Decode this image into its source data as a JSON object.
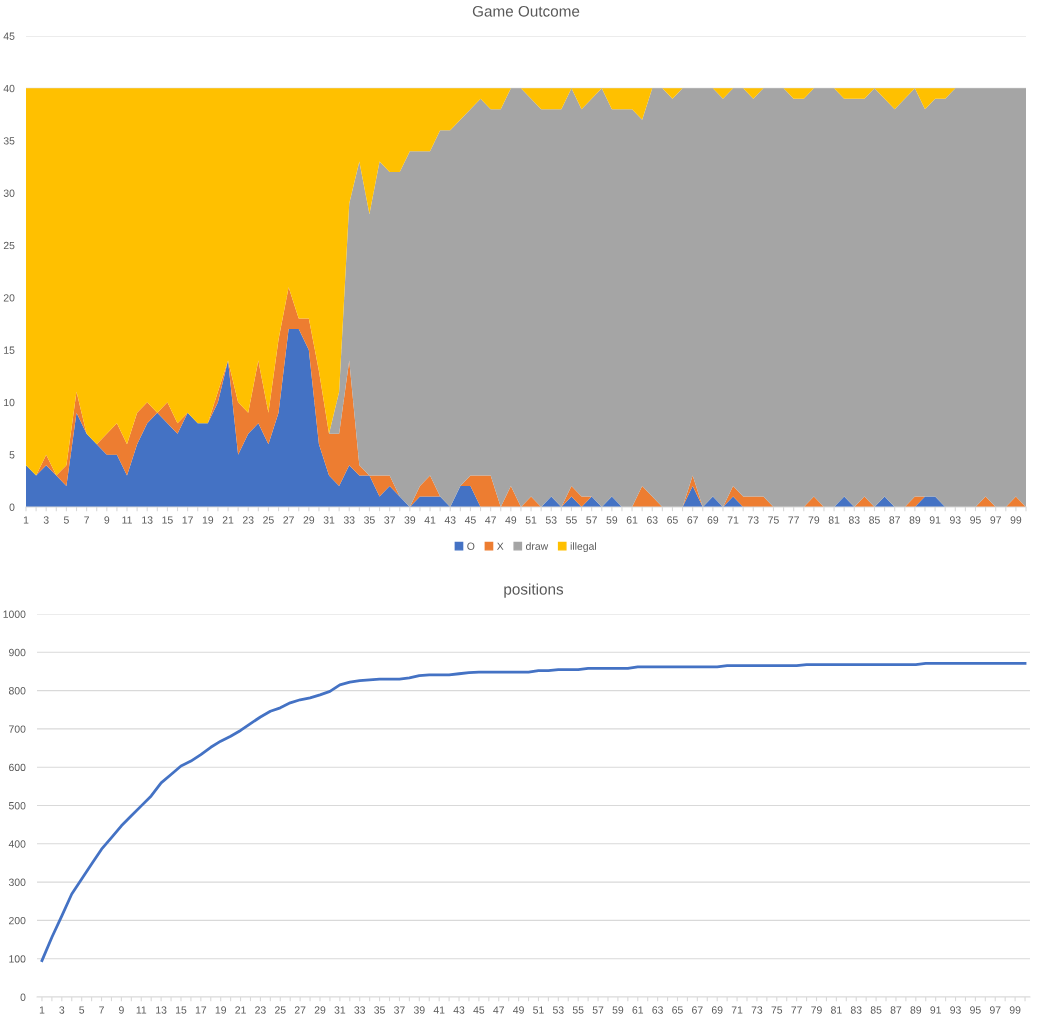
{
  "chart_data": [
    {
      "type": "area",
      "stacked": true,
      "title": "Game Outcome",
      "grid": "y",
      "legend": "bottom",
      "ylim": [
        0,
        45
      ],
      "yticks": [
        0,
        5,
        10,
        15,
        20,
        25,
        30,
        35,
        40,
        45
      ],
      "categories": [
        "1",
        null,
        "3",
        null,
        "5",
        null,
        "7",
        null,
        "9",
        null,
        "11",
        null,
        "13",
        null,
        "15",
        null,
        "17",
        null,
        "19",
        null,
        "21",
        null,
        "23",
        null,
        "25",
        null,
        "27",
        null,
        "29",
        null,
        "31",
        null,
        "33",
        null,
        "35",
        null,
        "37",
        null,
        "39",
        null,
        "41",
        null,
        "43",
        null,
        "45",
        null,
        "47",
        null,
        "49",
        null,
        "51",
        null,
        "53",
        null,
        "55",
        null,
        "57",
        null,
        "59",
        null,
        "61",
        null,
        "63",
        null,
        "65",
        null,
        "67",
        null,
        "69",
        null,
        "71",
        null,
        "73",
        null,
        "75",
        null,
        "77",
        null,
        "79",
        null,
        "81",
        null,
        "83",
        null,
        "85",
        null,
        "87",
        null,
        "89",
        null,
        "91",
        null,
        "93",
        null,
        "95",
        null,
        "97",
        null,
        "99",
        null
      ],
      "series": [
        {
          "name": "O",
          "color": "#4472c4",
          "values": [
            4,
            3,
            4,
            3,
            2,
            9,
            7,
            6,
            5,
            5,
            3,
            6,
            8,
            9,
            8,
            7,
            9,
            8,
            8,
            10,
            14,
            5,
            7,
            8,
            6,
            9,
            17,
            17,
            15,
            6,
            3,
            2,
            4,
            3,
            3,
            1,
            2,
            1,
            0,
            1,
            1,
            1,
            0,
            2,
            2,
            0,
            0,
            0,
            0,
            0,
            0,
            0,
            1,
            0,
            1,
            0,
            1,
            0,
            1,
            0,
            0,
            0,
            0,
            0,
            0,
            0,
            2,
            0,
            1,
            0,
            1,
            0,
            0,
            0,
            0,
            0,
            0,
            0,
            0,
            0,
            0,
            1,
            0,
            0,
            0,
            1,
            0,
            0,
            0,
            1,
            1,
            0,
            0,
            0,
            0,
            0,
            0,
            0,
            0,
            0
          ]
        },
        {
          "name": "X",
          "color": "#ed7d31",
          "values": [
            0,
            0,
            1,
            0,
            2,
            2,
            0,
            0,
            2,
            3,
            3,
            3,
            2,
            0,
            2,
            1,
            0,
            0,
            0,
            1,
            0,
            5,
            2,
            6,
            3,
            7,
            4,
            1,
            3,
            7,
            4,
            5,
            10,
            1,
            0,
            2,
            1,
            0,
            0,
            1,
            2,
            0,
            0,
            0,
            1,
            3,
            3,
            0,
            2,
            0,
            1,
            0,
            0,
            0,
            1,
            1,
            0,
            0,
            0,
            0,
            0,
            2,
            1,
            0,
            0,
            0,
            1,
            0,
            0,
            0,
            1,
            1,
            1,
            1,
            0,
            0,
            0,
            0,
            1,
            0,
            0,
            0,
            0,
            1,
            0,
            0,
            0,
            0,
            1,
            0,
            0,
            0,
            0,
            0,
            0,
            1,
            0,
            0,
            1,
            0
          ]
        },
        {
          "name": "draw",
          "color": "#a5a5a5",
          "values": [
            0,
            0,
            0,
            0,
            0,
            0,
            0,
            0,
            0,
            0,
            0,
            0,
            0,
            0,
            0,
            0,
            0,
            0,
            0,
            0,
            0,
            0,
            0,
            0,
            0,
            0,
            0,
            0,
            0,
            0,
            0,
            4,
            15,
            29,
            25,
            30,
            29,
            31,
            34,
            32,
            31,
            35,
            36,
            35,
            35,
            36,
            35,
            38,
            38,
            40,
            38,
            38,
            37,
            38,
            38,
            37,
            38,
            40,
            37,
            38,
            38,
            35,
            39,
            40,
            39,
            40,
            37,
            40,
            39,
            39,
            38,
            39,
            38,
            39,
            40,
            40,
            39,
            39,
            39,
            40,
            40,
            38,
            39,
            38,
            40,
            38,
            38,
            39,
            39,
            37,
            38,
            39,
            40,
            40,
            40,
            39,
            40,
            40,
            39,
            40
          ]
        },
        {
          "name": "illegal",
          "color": "#ffc000",
          "values": [
            36,
            37,
            35,
            37,
            36,
            29,
            33,
            34,
            33,
            32,
            34,
            31,
            30,
            31,
            30,
            32,
            31,
            32,
            32,
            29,
            26,
            30,
            31,
            26,
            31,
            24,
            19,
            22,
            22,
            27,
            33,
            29,
            11,
            7,
            12,
            7,
            8,
            8,
            6,
            6,
            6,
            4,
            4,
            3,
            2,
            1,
            2,
            2,
            0,
            0,
            1,
            2,
            2,
            2,
            0,
            2,
            1,
            0,
            2,
            2,
            2,
            3,
            0,
            0,
            1,
            0,
            0,
            0,
            0,
            1,
            0,
            0,
            1,
            0,
            0,
            0,
            1,
            1,
            0,
            0,
            0,
            1,
            1,
            1,
            0,
            1,
            2,
            1,
            0,
            2,
            1,
            1,
            0,
            0,
            0,
            0,
            0,
            0,
            0,
            0
          ]
        }
      ]
    },
    {
      "type": "line",
      "title": "positions",
      "grid": "y",
      "ylim": [
        0,
        1000
      ],
      "yticks": [
        0,
        100,
        200,
        300,
        400,
        500,
        600,
        700,
        800,
        900,
        1000
      ],
      "categories": [
        "1",
        null,
        "3",
        null,
        "5",
        null,
        "7",
        null,
        "9",
        null,
        "11",
        null,
        "13",
        null,
        "15",
        null,
        "17",
        null,
        "19",
        null,
        "21",
        null,
        "23",
        null,
        "25",
        null,
        "27",
        null,
        "29",
        null,
        "31",
        null,
        "33",
        null,
        "35",
        null,
        "37",
        null,
        "39",
        null,
        "41",
        null,
        "43",
        null,
        "45",
        null,
        "47",
        null,
        "49",
        null,
        "51",
        null,
        "53",
        null,
        "55",
        null,
        "57",
        null,
        "59",
        null,
        "61",
        null,
        "63",
        null,
        "65",
        null,
        "67",
        null,
        "69",
        null,
        "71",
        null,
        "73",
        null,
        "75",
        null,
        "77",
        null,
        "79",
        null,
        "81",
        null,
        "83",
        null,
        "85",
        null,
        "87",
        null,
        "89",
        null,
        "91",
        null,
        "93",
        null,
        "95",
        null,
        "97",
        null,
        "99",
        null
      ],
      "series": [
        {
          "color": "#4472c4",
          "values": [
            95,
            156,
            212,
            269,
            308,
            347,
            386,
            416,
            447,
            473,
            499,
            525,
            559,
            581,
            603,
            616,
            633,
            652,
            668,
            681,
            696,
            714,
            731,
            746,
            755,
            768,
            776,
            781,
            789,
            798,
            815,
            822,
            826,
            828,
            830,
            830,
            830,
            833,
            839,
            841,
            841,
            841,
            844,
            847,
            848,
            848,
            848,
            848,
            848,
            848,
            852,
            852,
            855,
            855,
            855,
            858,
            858,
            858,
            858,
            858,
            862,
            862,
            862,
            862,
            862,
            862,
            862,
            862,
            862,
            865,
            865,
            865,
            865,
            865,
            865,
            865,
            865,
            868,
            868,
            868,
            868,
            868,
            868,
            868,
            868,
            868,
            868,
            868,
            868,
            871,
            871,
            871,
            871,
            871,
            871,
            871,
            871,
            871,
            871,
            871
          ]
        }
      ]
    }
  ]
}
